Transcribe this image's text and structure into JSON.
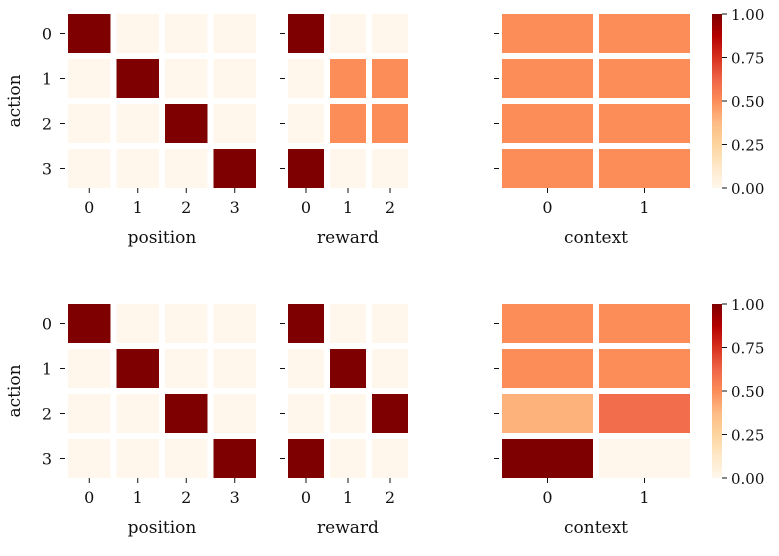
{
  "figure": {
    "background": "#ffffff",
    "colormap": "OrRd",
    "colorbar_ticks": [
      "0.00",
      "0.25",
      "0.50",
      "0.75",
      "1.00"
    ]
  },
  "chart_data": [
    {
      "type": "heatmap",
      "row": 0,
      "panel": 0,
      "title": "",
      "xlabel": "position",
      "ylabel": "action",
      "x": [
        "0",
        "1",
        "2",
        "3"
      ],
      "y": [
        "0",
        "1",
        "2",
        "3"
      ],
      "values": [
        [
          1,
          0,
          0,
          0
        ],
        [
          0,
          1,
          0,
          0
        ],
        [
          0,
          0,
          1,
          0
        ],
        [
          0,
          0,
          0,
          1
        ]
      ],
      "vlim": [
        0,
        1
      ]
    },
    {
      "type": "heatmap",
      "row": 0,
      "panel": 1,
      "title": "",
      "xlabel": "reward",
      "ylabel": "",
      "x": [
        "0",
        "1",
        "2"
      ],
      "y": [
        "0",
        "1",
        "2",
        "3"
      ],
      "values": [
        [
          1,
          0,
          0
        ],
        [
          0,
          0.5,
          0.5
        ],
        [
          0,
          0.5,
          0.5
        ],
        [
          1,
          0,
          0
        ]
      ],
      "vlim": [
        0,
        1
      ]
    },
    {
      "type": "heatmap",
      "row": 0,
      "panel": 2,
      "title": "",
      "xlabel": "context",
      "ylabel": "",
      "x": [
        "0",
        "1"
      ],
      "y": [
        "0",
        "1",
        "2",
        "3"
      ],
      "values": [
        [
          0.5,
          0.5
        ],
        [
          0.5,
          0.5
        ],
        [
          0.5,
          0.5
        ],
        [
          0.5,
          0.5
        ]
      ],
      "vlim": [
        0,
        1
      ]
    },
    {
      "type": "heatmap",
      "row": 1,
      "panel": 0,
      "title": "",
      "xlabel": "position",
      "ylabel": "action",
      "x": [
        "0",
        "1",
        "2",
        "3"
      ],
      "y": [
        "0",
        "1",
        "2",
        "3"
      ],
      "values": [
        [
          1,
          0,
          0,
          0
        ],
        [
          0,
          1,
          0,
          0
        ],
        [
          0,
          0,
          1,
          0
        ],
        [
          0,
          0,
          0,
          1
        ]
      ],
      "vlim": [
        0,
        1
      ]
    },
    {
      "type": "heatmap",
      "row": 1,
      "panel": 1,
      "title": "",
      "xlabel": "reward",
      "ylabel": "",
      "x": [
        "0",
        "1",
        "2"
      ],
      "y": [
        "0",
        "1",
        "2",
        "3"
      ],
      "values": [
        [
          1,
          0,
          0
        ],
        [
          0,
          1,
          0
        ],
        [
          0,
          0,
          1
        ],
        [
          1,
          0,
          0
        ]
      ],
      "vlim": [
        0,
        1
      ]
    },
    {
      "type": "heatmap",
      "row": 1,
      "panel": 2,
      "title": "",
      "xlabel": "context",
      "ylabel": "",
      "x": [
        "0",
        "1"
      ],
      "y": [
        "0",
        "1",
        "2",
        "3"
      ],
      "values": [
        [
          0.5,
          0.5
        ],
        [
          0.5,
          0.5
        ],
        [
          0.4,
          0.6
        ],
        [
          1,
          0
        ]
      ],
      "vlim": [
        0,
        1
      ]
    }
  ]
}
